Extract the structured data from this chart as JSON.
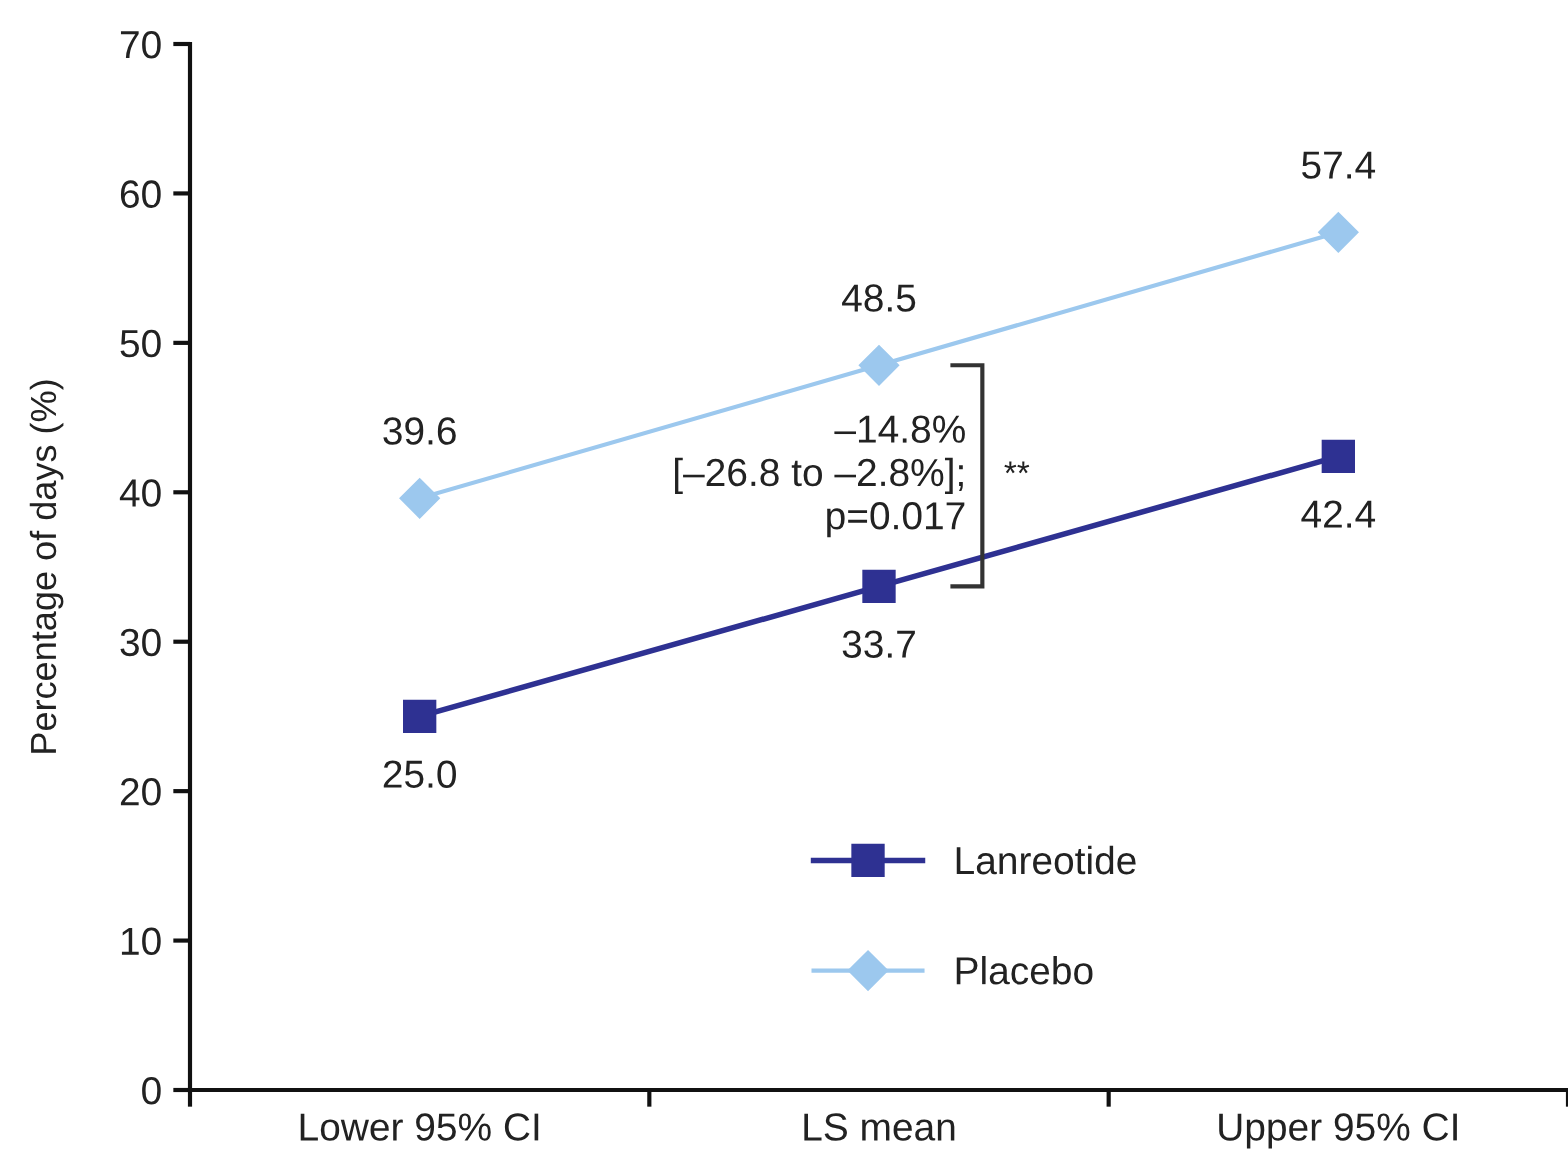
{
  "chart_data": {
    "type": "line",
    "categories": [
      "Lower 95% CI",
      "LS mean",
      "Upper 95% CI"
    ],
    "ylabel": "Percentage of days (%)",
    "ylim": [
      0,
      70
    ],
    "yticks": [
      0,
      10,
      20,
      30,
      40,
      50,
      60,
      70
    ],
    "legend": "bottom",
    "series": [
      {
        "name": "Lanreotide",
        "color": "#2e3192",
        "marker": "square",
        "values": [
          25.0,
          33.7,
          42.4
        ],
        "value_labels": [
          "25.0",
          "33.7",
          "42.4"
        ]
      },
      {
        "name": "Placebo",
        "color": "#9cc8ee",
        "marker": "diamond",
        "values": [
          39.6,
          48.5,
          57.4
        ],
        "value_labels": [
          "39.6",
          "48.5",
          "57.4"
        ]
      }
    ],
    "annotations": [
      "–14.8%\n[–26.8 to –2.8%];\np=0.017",
      "**"
    ]
  }
}
